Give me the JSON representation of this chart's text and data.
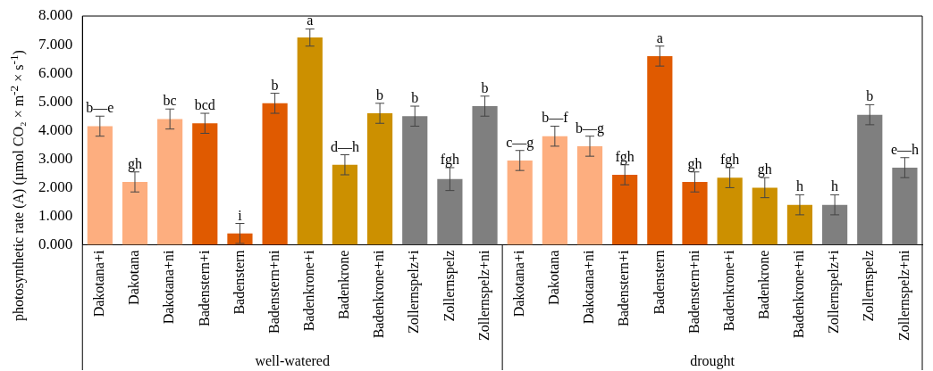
{
  "chart_data": {
    "type": "bar",
    "ylabel": "photosynthetic rate (A) (µmol CO₂ × m$^{-2}$ × s$^{-1}$)",
    "categories": [
      "Dakotana+i",
      "Dakotana",
      "Dakotana+ni",
      "Badenstern+i",
      "Badenstern",
      "Badenstern+ni",
      "Badenkrone+i",
      "Badenkrone",
      "Badenkrone+ni",
      "Zollernspelz+i",
      "Zollernspelz",
      "Zollernspelz+ni",
      "Dakotana+i",
      "Dakotana",
      "Dakotana+ni",
      "Badenstern+i",
      "Badenstern",
      "Badenstern+ni",
      "Badenkrone+i",
      "Badenkrone",
      "Badenkrone+ni",
      "Zollernspelz+i",
      "Zollernspelz",
      "Zollernspelz+ni"
    ],
    "values": [
      4.15,
      2.2,
      4.4,
      4.25,
      0.4,
      4.95,
      7.25,
      2.8,
      4.6,
      4.5,
      2.3,
      4.85,
      2.95,
      3.8,
      3.45,
      2.45,
      6.6,
      2.2,
      2.35,
      2.0,
      1.4,
      1.4,
      4.55,
      2.7
    ],
    "errors": [
      0.35,
      0.35,
      0.35,
      0.35,
      0.35,
      0.35,
      0.3,
      0.35,
      0.35,
      0.35,
      0.4,
      0.35,
      0.35,
      0.35,
      0.35,
      0.35,
      0.35,
      0.35,
      0.35,
      0.35,
      0.35,
      0.35,
      0.35,
      0.35
    ],
    "colors": [
      "#fdae7f",
      "#fdae7f",
      "#fdae7f",
      "#e05a00",
      "#e05a00",
      "#e05a00",
      "#cc9000",
      "#cc9000",
      "#cc9000",
      "#7f7f7f",
      "#7f7f7f",
      "#7f7f7f",
      "#fdae7f",
      "#fdae7f",
      "#fdae7f",
      "#e05a00",
      "#e05a00",
      "#e05a00",
      "#cc9000",
      "#cc9000",
      "#cc9000",
      "#7f7f7f",
      "#7f7f7f",
      "#7f7f7f"
    ],
    "value_labels": [
      "b—e",
      "gh",
      "bc",
      "bcd",
      "i",
      "b",
      "a",
      "d—h",
      "b",
      "b",
      "fgh",
      "b",
      "c—g",
      "b—f",
      "b—g",
      "fgh",
      "a",
      "gh",
      "fgh",
      "gh",
      "h",
      "h",
      "b",
      "e—h"
    ],
    "ylim": [
      0,
      8
    ],
    "yticks": [
      {
        "value": 0,
        "label": "0.000"
      },
      {
        "value": 1,
        "label": "1.000"
      },
      {
        "value": 2,
        "label": "2.000"
      },
      {
        "value": 3,
        "label": "3.000"
      },
      {
        "value": 4,
        "label": "4.000"
      },
      {
        "value": 5,
        "label": "5.000"
      },
      {
        "value": 6,
        "label": "6.000"
      },
      {
        "value": 7,
        "label": "7.000"
      },
      {
        "value": 8,
        "label": "8.000"
      }
    ],
    "annotations": [
      "well-watered",
      "drought"
    ],
    "grid": false,
    "legend": false
  }
}
